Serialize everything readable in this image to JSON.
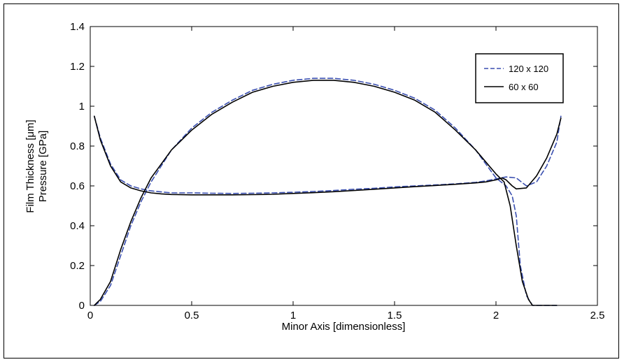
{
  "chart_data": {
    "type": "line",
    "xlabel": "Minor Axis [dimensionless]",
    "ylabel_line1": "Film Thickness [μm]",
    "ylabel_line2": "Pressure [GPa]",
    "xlim": [
      0,
      2.5
    ],
    "ylim": [
      0,
      1.4
    ],
    "xticks": [
      "0",
      "0.5",
      "1",
      "1.5",
      "2",
      "2.5"
    ],
    "yticks": [
      "0",
      "0.2",
      "0.4",
      "0.6",
      "0.8",
      "1",
      "1.2",
      "1.4"
    ],
    "xtick_values": [
      0,
      0.5,
      1,
      1.5,
      2,
      2.5
    ],
    "ytick_values": [
      0,
      0.2,
      0.4,
      0.6,
      0.8,
      1,
      1.2,
      1.4
    ],
    "grid": false,
    "legend_position": "top-right",
    "series": [
      {
        "name": "120 x 120",
        "color": "#3a4fb0",
        "style": "dashed",
        "curves": [
          {
            "x": [
              0.02,
              0.05,
              0.1,
              0.15,
              0.2,
              0.25,
              0.3,
              0.35,
              0.4,
              0.5,
              0.6,
              0.7,
              0.8,
              0.9,
              1.0,
              1.1,
              1.2,
              1.3,
              1.4,
              1.5,
              1.6,
              1.7,
              1.8,
              1.9,
              1.95,
              2.0,
              2.05,
              2.1,
              2.15,
              2.2,
              2.25,
              2.3,
              2.32
            ],
            "y": [
              0.95,
              0.84,
              0.71,
              0.63,
              0.6,
              0.585,
              0.575,
              0.57,
              0.565,
              0.565,
              0.563,
              0.562,
              0.563,
              0.565,
              0.568,
              0.572,
              0.577,
              0.583,
              0.588,
              0.595,
              0.6,
              0.605,
              0.61,
              0.618,
              0.625,
              0.635,
              0.645,
              0.64,
              0.6,
              0.62,
              0.7,
              0.82,
              0.95
            ]
          },
          {
            "x": [
              0.02,
              0.05,
              0.1,
              0.15,
              0.2,
              0.25,
              0.3,
              0.35,
              0.4,
              0.5,
              0.6,
              0.7,
              0.8,
              0.9,
              1.0,
              1.1,
              1.2,
              1.3,
              1.4,
              1.5,
              1.6,
              1.7,
              1.8,
              1.9,
              1.95,
              2.0,
              2.05,
              2.08,
              2.1,
              2.12,
              2.15,
              2.18,
              2.2,
              2.25,
              2.3
            ],
            "y": [
              0.0,
              0.02,
              0.1,
              0.25,
              0.4,
              0.52,
              0.62,
              0.7,
              0.78,
              0.89,
              0.97,
              1.03,
              1.08,
              1.11,
              1.13,
              1.14,
              1.14,
              1.13,
              1.11,
              1.08,
              1.04,
              0.98,
              0.89,
              0.78,
              0.71,
              0.64,
              0.6,
              0.55,
              0.45,
              0.2,
              0.05,
              0.0,
              0.0,
              0.0,
              0.0
            ]
          }
        ]
      },
      {
        "name": "60 x 60",
        "color": "#000000",
        "style": "solid",
        "curves": [
          {
            "x": [
              0.02,
              0.05,
              0.1,
              0.15,
              0.2,
              0.25,
              0.3,
              0.35,
              0.4,
              0.5,
              0.6,
              0.7,
              0.8,
              0.9,
              1.0,
              1.1,
              1.2,
              1.3,
              1.4,
              1.5,
              1.6,
              1.7,
              1.8,
              1.9,
              1.95,
              2.0,
              2.03,
              2.05,
              2.08,
              2.1,
              2.15,
              2.2,
              2.25,
              2.3,
              2.32
            ],
            "y": [
              0.95,
              0.83,
              0.7,
              0.62,
              0.59,
              0.575,
              0.565,
              0.56,
              0.557,
              0.555,
              0.555,
              0.555,
              0.556,
              0.558,
              0.562,
              0.566,
              0.571,
              0.577,
              0.583,
              0.59,
              0.596,
              0.602,
              0.608,
              0.615,
              0.62,
              0.63,
              0.64,
              0.63,
              0.6,
              0.585,
              0.59,
              0.65,
              0.74,
              0.86,
              0.94
            ]
          },
          {
            "x": [
              0.02,
              0.05,
              0.1,
              0.15,
              0.2,
              0.25,
              0.3,
              0.35,
              0.4,
              0.5,
              0.6,
              0.7,
              0.8,
              0.9,
              1.0,
              1.1,
              1.2,
              1.3,
              1.4,
              1.5,
              1.6,
              1.7,
              1.8,
              1.9,
              1.95,
              2.0,
              2.04,
              2.07,
              2.1,
              2.13,
              2.16,
              2.18,
              2.2,
              2.25,
              2.3
            ],
            "y": [
              0.0,
              0.03,
              0.12,
              0.28,
              0.42,
              0.54,
              0.64,
              0.71,
              0.78,
              0.88,
              0.96,
              1.02,
              1.07,
              1.1,
              1.12,
              1.13,
              1.13,
              1.12,
              1.1,
              1.07,
              1.03,
              0.97,
              0.88,
              0.78,
              0.72,
              0.66,
              0.62,
              0.5,
              0.3,
              0.12,
              0.03,
              0.0,
              0.0,
              0.0,
              0.0
            ]
          }
        ]
      }
    ]
  }
}
